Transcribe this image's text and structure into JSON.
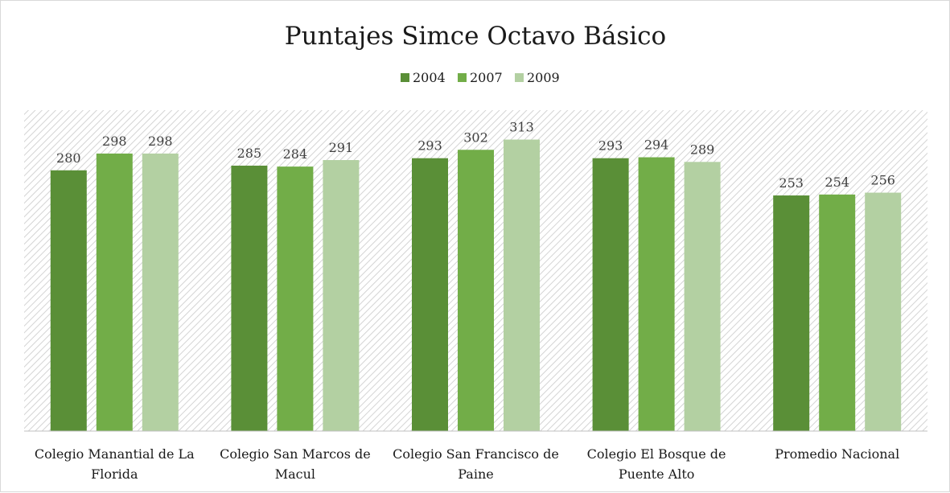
{
  "chart_data": {
    "type": "bar",
    "title": "Puntajes Simce Octavo Básico",
    "categories": [
      [
        "Colegio Manantial de La",
        "Florida"
      ],
      [
        "Colegio San Marcos de",
        "Macul"
      ],
      [
        "Colegio San Francisco de",
        "Paine"
      ],
      [
        "Colegio El Bosque de",
        "Puente Alto"
      ],
      [
        "Promedio Nacional"
      ]
    ],
    "series": [
      {
        "name": "2004",
        "color": "#5a8f37",
        "values": [
          280,
          285,
          293,
          293,
          253
        ]
      },
      {
        "name": "2007",
        "color": "#72ad48",
        "values": [
          298,
          284,
          302,
          294,
          254
        ]
      },
      {
        "name": "2009",
        "color": "#b3d0a2",
        "values": [
          298,
          291,
          313,
          289,
          256
        ]
      }
    ],
    "xlabel": "",
    "ylabel": "",
    "ylim": [
      0,
      320
    ],
    "grid": false,
    "legend_position": "top",
    "plot_background": "diagonal-hatch"
  }
}
